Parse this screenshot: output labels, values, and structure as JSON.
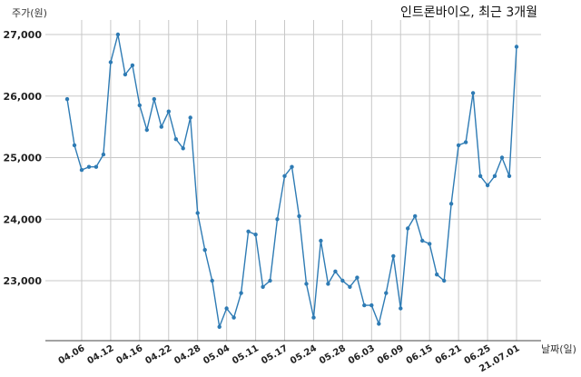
{
  "chart_data": {
    "type": "line",
    "title": "인트론바이오, 최근 3개월",
    "ylabel": "주가(원)",
    "xlabel": "날짜(일)",
    "ylim": [
      22000,
      27300
    ],
    "yticks": [
      23000,
      24000,
      25000,
      26000,
      27000
    ],
    "ytick_labels": [
      "23,000",
      "24,000",
      "25,000",
      "26,000",
      "27,000"
    ],
    "xtick_labels": [
      "04.06",
      "04.12",
      "04.16",
      "04.22",
      "04.28",
      "05.04",
      "05.11",
      "05.17",
      "05.24",
      "05.28",
      "06.03",
      "06.09",
      "06.15",
      "06.21",
      "06.25",
      "21.07.01"
    ],
    "xtick_index": [
      2,
      6,
      10,
      14,
      18,
      22,
      26,
      30,
      34,
      38,
      42,
      46,
      50,
      54,
      58,
      62
    ],
    "grid": true,
    "series": [
      {
        "color": "#2e7bb4",
        "values": [
          25950,
          25200,
          24800,
          24850,
          24850,
          25050,
          26550,
          27000,
          26350,
          26500,
          25850,
          25450,
          25950,
          25500,
          25750,
          25300,
          25150,
          25650,
          24100,
          23500,
          23000,
          22250,
          22550,
          22400,
          22800,
          23800,
          23750,
          22900,
          23000,
          24000,
          24700,
          24850,
          24050,
          22950,
          22400,
          23650,
          22950,
          23150,
          23000,
          22900,
          23050,
          22600,
          22600,
          22300,
          22800,
          23400,
          22550,
          23850,
          24050,
          23650,
          23600,
          23100,
          23000,
          24250,
          25200,
          25250,
          26050,
          24700,
          24550,
          24700,
          25000,
          24700,
          26800
        ]
      }
    ]
  }
}
